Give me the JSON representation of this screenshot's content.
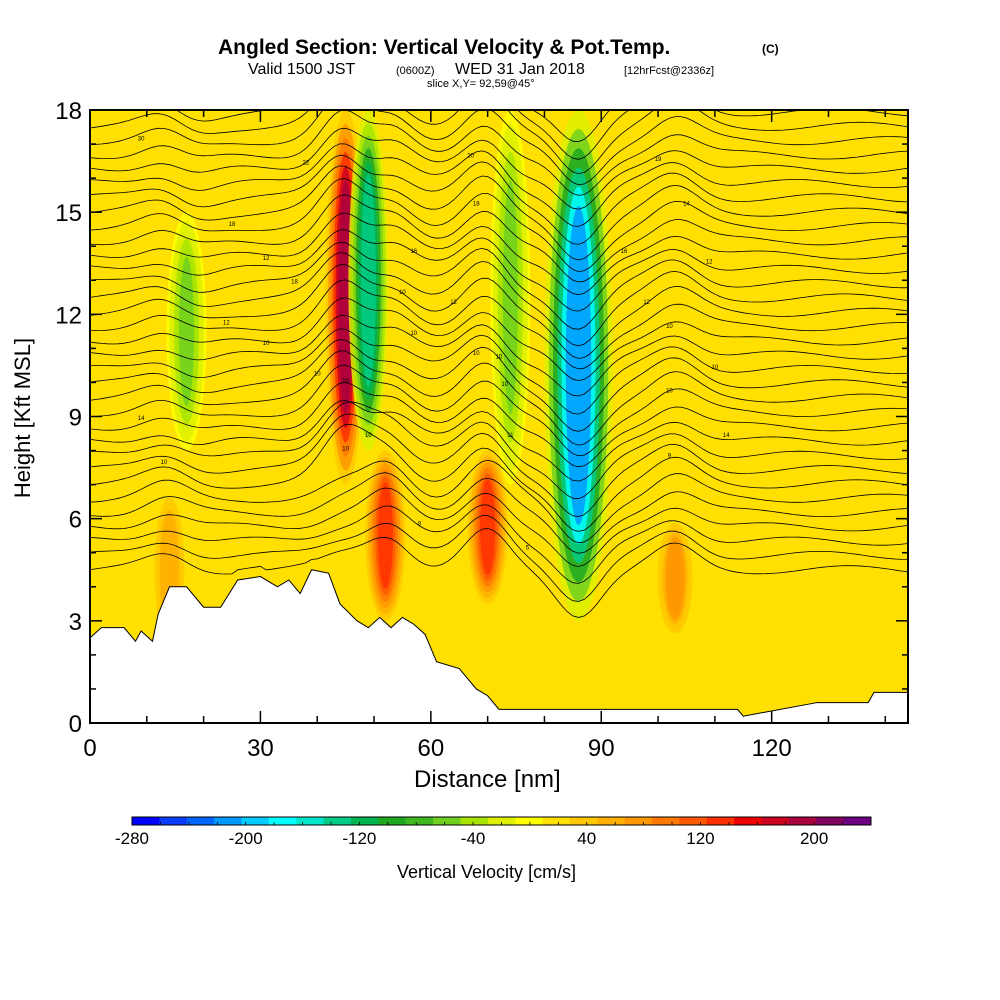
{
  "header": {
    "title": "Angled Section: Vertical Velocity & Pot.Temp.",
    "title_unit": "(C)",
    "subtitle_a": "Valid 1500 JST",
    "subtitle_zulu": "(0600Z)",
    "subtitle_b": "WED 31 Jan 2018",
    "subtitle_fcst": "[12hrFcst@2336z]",
    "slice": "slice X,Y= 92,59@45°"
  },
  "chart_data": {
    "type": "heatmap",
    "xlabel": "Distance [nm]",
    "ylabel": "Height [Kft MSL]",
    "xlim": [
      0,
      144
    ],
    "ylim": [
      0,
      18
    ],
    "x_ticks": [
      0,
      30,
      60,
      90,
      120
    ],
    "y_ticks": [
      0,
      3,
      6,
      9,
      12,
      15,
      18
    ],
    "colorbar": {
      "label": "Vertical Velocity [cm/s]",
      "range": [
        -280,
        240
      ],
      "step": 20,
      "tick_labels": [
        "-280",
        "-200",
        "-120",
        "-40",
        "40",
        "120",
        "200"
      ],
      "colors": [
        "#0000ff",
        "#0a3cff",
        "#0066ff",
        "#0099ff",
        "#00ccff",
        "#00ffff",
        "#00e6cc",
        "#00cc88",
        "#00b450",
        "#20a820",
        "#40b820",
        "#70d020",
        "#a8e400",
        "#ddf000",
        "#ffff00",
        "#ffe000",
        "#ffc800",
        "#ffb000",
        "#ff9800",
        "#ff7800",
        "#ff5800",
        "#ff3000",
        "#ee0000",
        "#cc0020",
        "#aa0040",
        "#800060",
        "#6a0080"
      ]
    },
    "updrafts": [
      {
        "x": 45,
        "z_range": [
          7,
          18
        ],
        "peak_cm_s": 200
      },
      {
        "x": 52,
        "z_range": [
          3,
          8
        ],
        "peak_cm_s": 140
      },
      {
        "x": 70,
        "z_range": [
          3.5,
          8
        ],
        "peak_cm_s": 140
      },
      {
        "x": 103,
        "z_range": [
          2.5,
          6
        ],
        "peak_cm_s": 80
      },
      {
        "x": 14,
        "z_range": [
          2,
          7
        ],
        "peak_cm_s": 60
      }
    ],
    "downdrafts": [
      {
        "x": 49,
        "z_range": [
          8,
          18
        ],
        "peak_cm_s": -140
      },
      {
        "x": 86,
        "z_range": [
          3,
          18
        ],
        "peak_cm_s": -220
      },
      {
        "x": 74,
        "z_range": [
          7,
          18
        ],
        "peak_cm_s": -60
      },
      {
        "x": 17,
        "z_range": [
          8,
          15
        ],
        "peak_cm_s": -60
      }
    ],
    "terrain_height_kft": [
      [
        0,
        2.5
      ],
      [
        2,
        2.8
      ],
      [
        6,
        2.8
      ],
      [
        8,
        2.4
      ],
      [
        9,
        2.7
      ],
      [
        11,
        2.4
      ],
      [
        12,
        3.2
      ],
      [
        14,
        4
      ],
      [
        17,
        4
      ],
      [
        20,
        3.4
      ],
      [
        23,
        3.4
      ],
      [
        26,
        4.2
      ],
      [
        30,
        4.3
      ],
      [
        33,
        4
      ],
      [
        35,
        4.2
      ],
      [
        37,
        3.8
      ],
      [
        39,
        4.5
      ],
      [
        42,
        4.4
      ],
      [
        44,
        3.5
      ],
      [
        47,
        3
      ],
      [
        49,
        2.8
      ],
      [
        51,
        3.1
      ],
      [
        53,
        2.8
      ],
      [
        55,
        3.1
      ],
      [
        57,
        2.9
      ],
      [
        59,
        2.6
      ],
      [
        61,
        1.8
      ],
      [
        65,
        1.6
      ],
      [
        68,
        1
      ],
      [
        70,
        0.8
      ],
      [
        72,
        0.4
      ],
      [
        80,
        0.4
      ],
      [
        90,
        0.4
      ],
      [
        114,
        0.4
      ],
      [
        115,
        0.2
      ],
      [
        128,
        0.6
      ],
      [
        137,
        0.6
      ],
      [
        138,
        0.9
      ],
      [
        144,
        0.9
      ]
    ],
    "theta_contour_labels": [
      {
        "text": "30",
        "x": 9,
        "z": 17.1
      },
      {
        "text": "22",
        "x": 38,
        "z": 16.4
      },
      {
        "text": "20",
        "x": 67,
        "z": 16.6
      },
      {
        "text": "19",
        "x": 100,
        "z": 16.5
      },
      {
        "text": "18",
        "x": 68,
        "z": 15.2
      },
      {
        "text": "18",
        "x": 25,
        "z": 14.6
      },
      {
        "text": "14",
        "x": 105,
        "z": 15.2
      },
      {
        "text": "16",
        "x": 57,
        "z": 13.8
      },
      {
        "text": "16",
        "x": 94,
        "z": 13.8
      },
      {
        "text": "12",
        "x": 31,
        "z": 13.6
      },
      {
        "text": "12",
        "x": 109,
        "z": 13.5
      },
      {
        "text": "18",
        "x": 36,
        "z": 12.9
      },
      {
        "text": "10",
        "x": 55,
        "z": 12.6
      },
      {
        "text": "12",
        "x": 64,
        "z": 12.3
      },
      {
        "text": "12",
        "x": 98,
        "z": 12.3
      },
      {
        "text": "12",
        "x": 24,
        "z": 11.7
      },
      {
        "text": "10",
        "x": 57,
        "z": 11.4
      },
      {
        "text": "10",
        "x": 102,
        "z": 11.6
      },
      {
        "text": "10",
        "x": 31,
        "z": 11.1
      },
      {
        "text": "10",
        "x": 68,
        "z": 10.8
      },
      {
        "text": "10",
        "x": 72,
        "z": 10.7
      },
      {
        "text": "10",
        "x": 110,
        "z": 10.4
      },
      {
        "text": "10",
        "x": 40,
        "z": 10.2
      },
      {
        "text": "10",
        "x": 45,
        "z": 10
      },
      {
        "text": "10",
        "x": 73,
        "z": 9.9
      },
      {
        "text": "10",
        "x": 102,
        "z": 9.7
      },
      {
        "text": "14",
        "x": 9,
        "z": 8.9
      },
      {
        "text": "10",
        "x": 49,
        "z": 8.4
      },
      {
        "text": "11",
        "x": 74,
        "z": 8.4
      },
      {
        "text": "14",
        "x": 112,
        "z": 8.4
      },
      {
        "text": "10",
        "x": 45,
        "z": 8
      },
      {
        "text": "9",
        "x": 102,
        "z": 7.8
      },
      {
        "text": "10",
        "x": 13,
        "z": 7.6
      },
      {
        "text": "8",
        "x": 58,
        "z": 5.8
      },
      {
        "text": "5",
        "x": 77,
        "z": 5.1
      }
    ]
  }
}
